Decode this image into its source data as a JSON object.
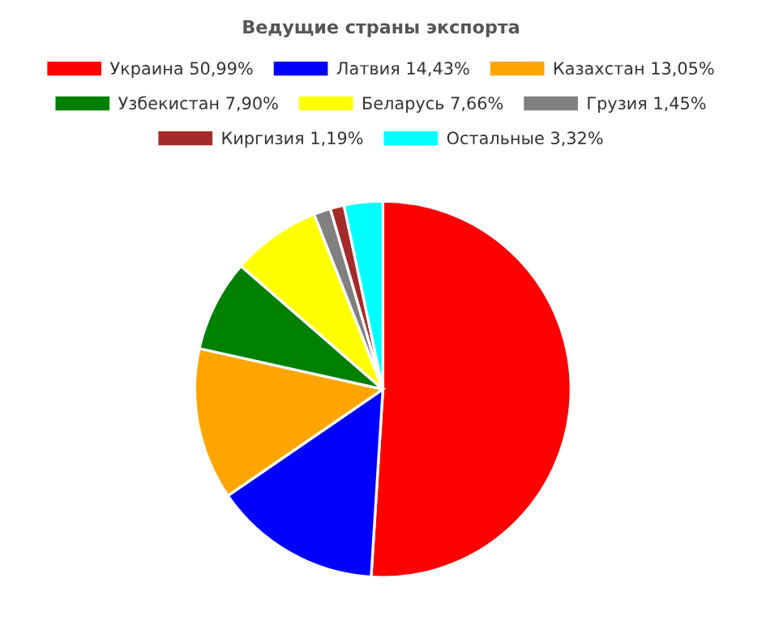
{
  "chart_data": {
    "type": "pie",
    "title": "Ведущие страны экспорта",
    "categories": [
      "Украина",
      "Латвия",
      "Казахстан",
      "Узбекистан",
      "Беларусь",
      "Грузия",
      "Киргизия",
      "Остальные"
    ],
    "values": [
      50.99,
      14.43,
      13.05,
      7.9,
      7.66,
      1.45,
      1.19,
      3.32
    ],
    "value_labels": [
      "50,99%",
      "14,43%",
      "13,05%",
      "7,90%",
      "7,66%",
      "1,45%",
      "1,19%",
      "3,32%"
    ],
    "colors": [
      "#ff0000",
      "#0000ff",
      "#ffa500",
      "#008000",
      "#ffff00",
      "#808080",
      "#a52a2a",
      "#00ffff"
    ],
    "legend": "top"
  }
}
